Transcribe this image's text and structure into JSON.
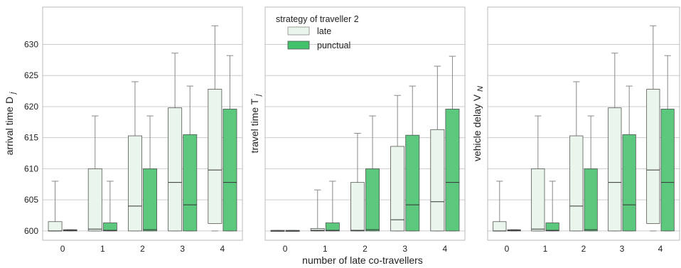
{
  "xlabel": "number of late co-travellers",
  "legend": {
    "title": "strategy of traveller 2",
    "placement": "top-left of middle panel",
    "entries": [
      {
        "label": "late",
        "color": "#eaf6ec"
      },
      {
        "label": "punctual",
        "color": "#41c26b"
      }
    ]
  },
  "colors": {
    "late_fill": "#eaf6ec",
    "punctual_fill": "#5bc87e",
    "edge": "#555555",
    "grid": "#cccccc"
  },
  "chart_data": [
    {
      "type": "box",
      "ylabel": "arrival time D",
      "ylabel_sub": "j",
      "categories": [
        "0",
        "1",
        "2",
        "3",
        "4"
      ],
      "ylim": [
        598.5,
        636
      ],
      "yticks": [
        600,
        605,
        610,
        615,
        620,
        625,
        630
      ],
      "grid": true,
      "series": [
        {
          "name": "late",
          "boxes": [
            {
              "low": 600,
              "q1": 600,
              "median": 600,
              "q3": 601.5,
              "high": 608
            },
            {
              "low": 600,
              "q1": 600,
              "median": 600.3,
              "q3": 610,
              "high": 618.5
            },
            {
              "low": 600,
              "q1": 600,
              "median": 604,
              "q3": 615.3,
              "high": 624
            },
            {
              "low": 600,
              "q1": 600,
              "median": 607.8,
              "q3": 619.8,
              "high": 628.6
            },
            {
              "low": 600,
              "q1": 601.2,
              "median": 609.8,
              "q3": 622.8,
              "high": 633
            }
          ]
        },
        {
          "name": "punctual",
          "boxes": [
            {
              "low": 600,
              "q1": 600,
              "median": 600.1,
              "q3": 600.2,
              "high": 600.2
            },
            {
              "low": 600,
              "q1": 600,
              "median": 600.1,
              "q3": 601.3,
              "high": 608
            },
            {
              "low": 600,
              "q1": 600,
              "median": 600.2,
              "q3": 610,
              "high": 618.5
            },
            {
              "low": 600,
              "q1": 600,
              "median": 604.2,
              "q3": 615.5,
              "high": 623.3
            },
            {
              "low": 600,
              "q1": 600,
              "median": 607.8,
              "q3": 619.6,
              "high": 628.2
            }
          ]
        }
      ]
    },
    {
      "type": "box",
      "ylabel": "travel time T",
      "ylabel_sub": "j",
      "categories": [
        "0",
        "1",
        "2",
        "3",
        "4"
      ],
      "ylim": [
        598.5,
        636
      ],
      "yticks": [
        600,
        605,
        610,
        615,
        620,
        625,
        630
      ],
      "grid": true,
      "series": [
        {
          "name": "late",
          "boxes": [
            {
              "low": 600,
              "q1": 600,
              "median": 600,
              "q3": 600.1,
              "high": 600.1
            },
            {
              "low": 600,
              "q1": 600,
              "median": 600.1,
              "q3": 600.4,
              "high": 606.6
            },
            {
              "low": 600,
              "q1": 600,
              "median": 600.1,
              "q3": 607.8,
              "high": 615.7
            },
            {
              "low": 600,
              "q1": 600,
              "median": 601.8,
              "q3": 613.6,
              "high": 621.8
            },
            {
              "low": 600,
              "q1": 600,
              "median": 604.7,
              "q3": 616.3,
              "high": 626.5
            }
          ]
        },
        {
          "name": "punctual",
          "boxes": [
            {
              "low": 600,
              "q1": 600,
              "median": 600,
              "q3": 600.1,
              "high": 600.1
            },
            {
              "low": 600,
              "q1": 600,
              "median": 600.1,
              "q3": 601.3,
              "high": 608
            },
            {
              "low": 600,
              "q1": 600,
              "median": 600.2,
              "q3": 610,
              "high": 618.5
            },
            {
              "low": 600,
              "q1": 600,
              "median": 604.2,
              "q3": 615.4,
              "high": 623.3
            },
            {
              "low": 600,
              "q1": 600,
              "median": 607.8,
              "q3": 619.6,
              "high": 628.1
            }
          ]
        }
      ]
    },
    {
      "type": "box",
      "ylabel": "vehicle delay V",
      "ylabel_sub": "N",
      "categories": [
        "0",
        "1",
        "2",
        "3",
        "4"
      ],
      "ylim": [
        598.5,
        636
      ],
      "yticks": [
        600,
        605,
        610,
        615,
        620,
        625,
        630
      ],
      "grid": true,
      "series": [
        {
          "name": "late",
          "boxes": [
            {
              "low": 600,
              "q1": 600,
              "median": 600,
              "q3": 601.5,
              "high": 608
            },
            {
              "low": 600,
              "q1": 600,
              "median": 600.3,
              "q3": 610,
              "high": 618.5
            },
            {
              "low": 600,
              "q1": 600,
              "median": 604,
              "q3": 615.3,
              "high": 624
            },
            {
              "low": 600,
              "q1": 600,
              "median": 607.8,
              "q3": 619.8,
              "high": 628.6
            },
            {
              "low": 600,
              "q1": 601.2,
              "median": 609.8,
              "q3": 622.8,
              "high": 633
            }
          ]
        },
        {
          "name": "punctual",
          "boxes": [
            {
              "low": 600,
              "q1": 600,
              "median": 600.1,
              "q3": 600.2,
              "high": 600.2
            },
            {
              "low": 600,
              "q1": 600,
              "median": 600.1,
              "q3": 601.3,
              "high": 608
            },
            {
              "low": 600,
              "q1": 600,
              "median": 600.2,
              "q3": 610,
              "high": 618.5
            },
            {
              "low": 600,
              "q1": 600,
              "median": 604.2,
              "q3": 615.5,
              "high": 623.3
            },
            {
              "low": 600,
              "q1": 600,
              "median": 607.8,
              "q3": 619.6,
              "high": 628.2
            }
          ]
        }
      ]
    }
  ]
}
